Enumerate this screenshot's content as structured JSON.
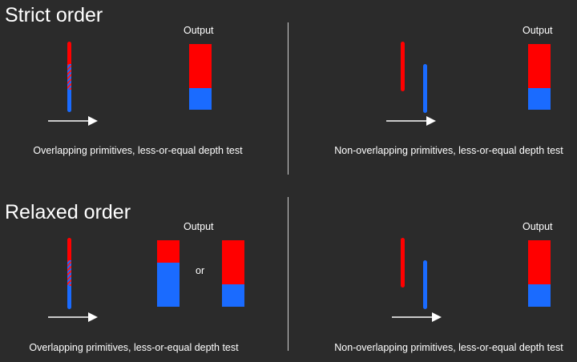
{
  "colors": {
    "background": "#2b2b2b",
    "red": "#ff0000",
    "blue": "#1a6bff",
    "text": "#ffffff",
    "divider": "#cfcfcf"
  },
  "sections": {
    "strict": {
      "title": "Strict order",
      "left": {
        "output_label": "Output",
        "caption": "Overlapping primitives, less-or-equal depth test"
      },
      "right": {
        "output_label": "Output",
        "caption": "Non-overlapping primitives, less-or-equal depth test"
      }
    },
    "relaxed": {
      "title": "Relaxed order",
      "left": {
        "output_label": "Output",
        "or_label": "or",
        "caption": "Overlapping primitives, less-or-equal depth test"
      },
      "right": {
        "output_label": "Output",
        "caption": "Non-overlapping primitives, less-or-equal depth test"
      }
    }
  }
}
